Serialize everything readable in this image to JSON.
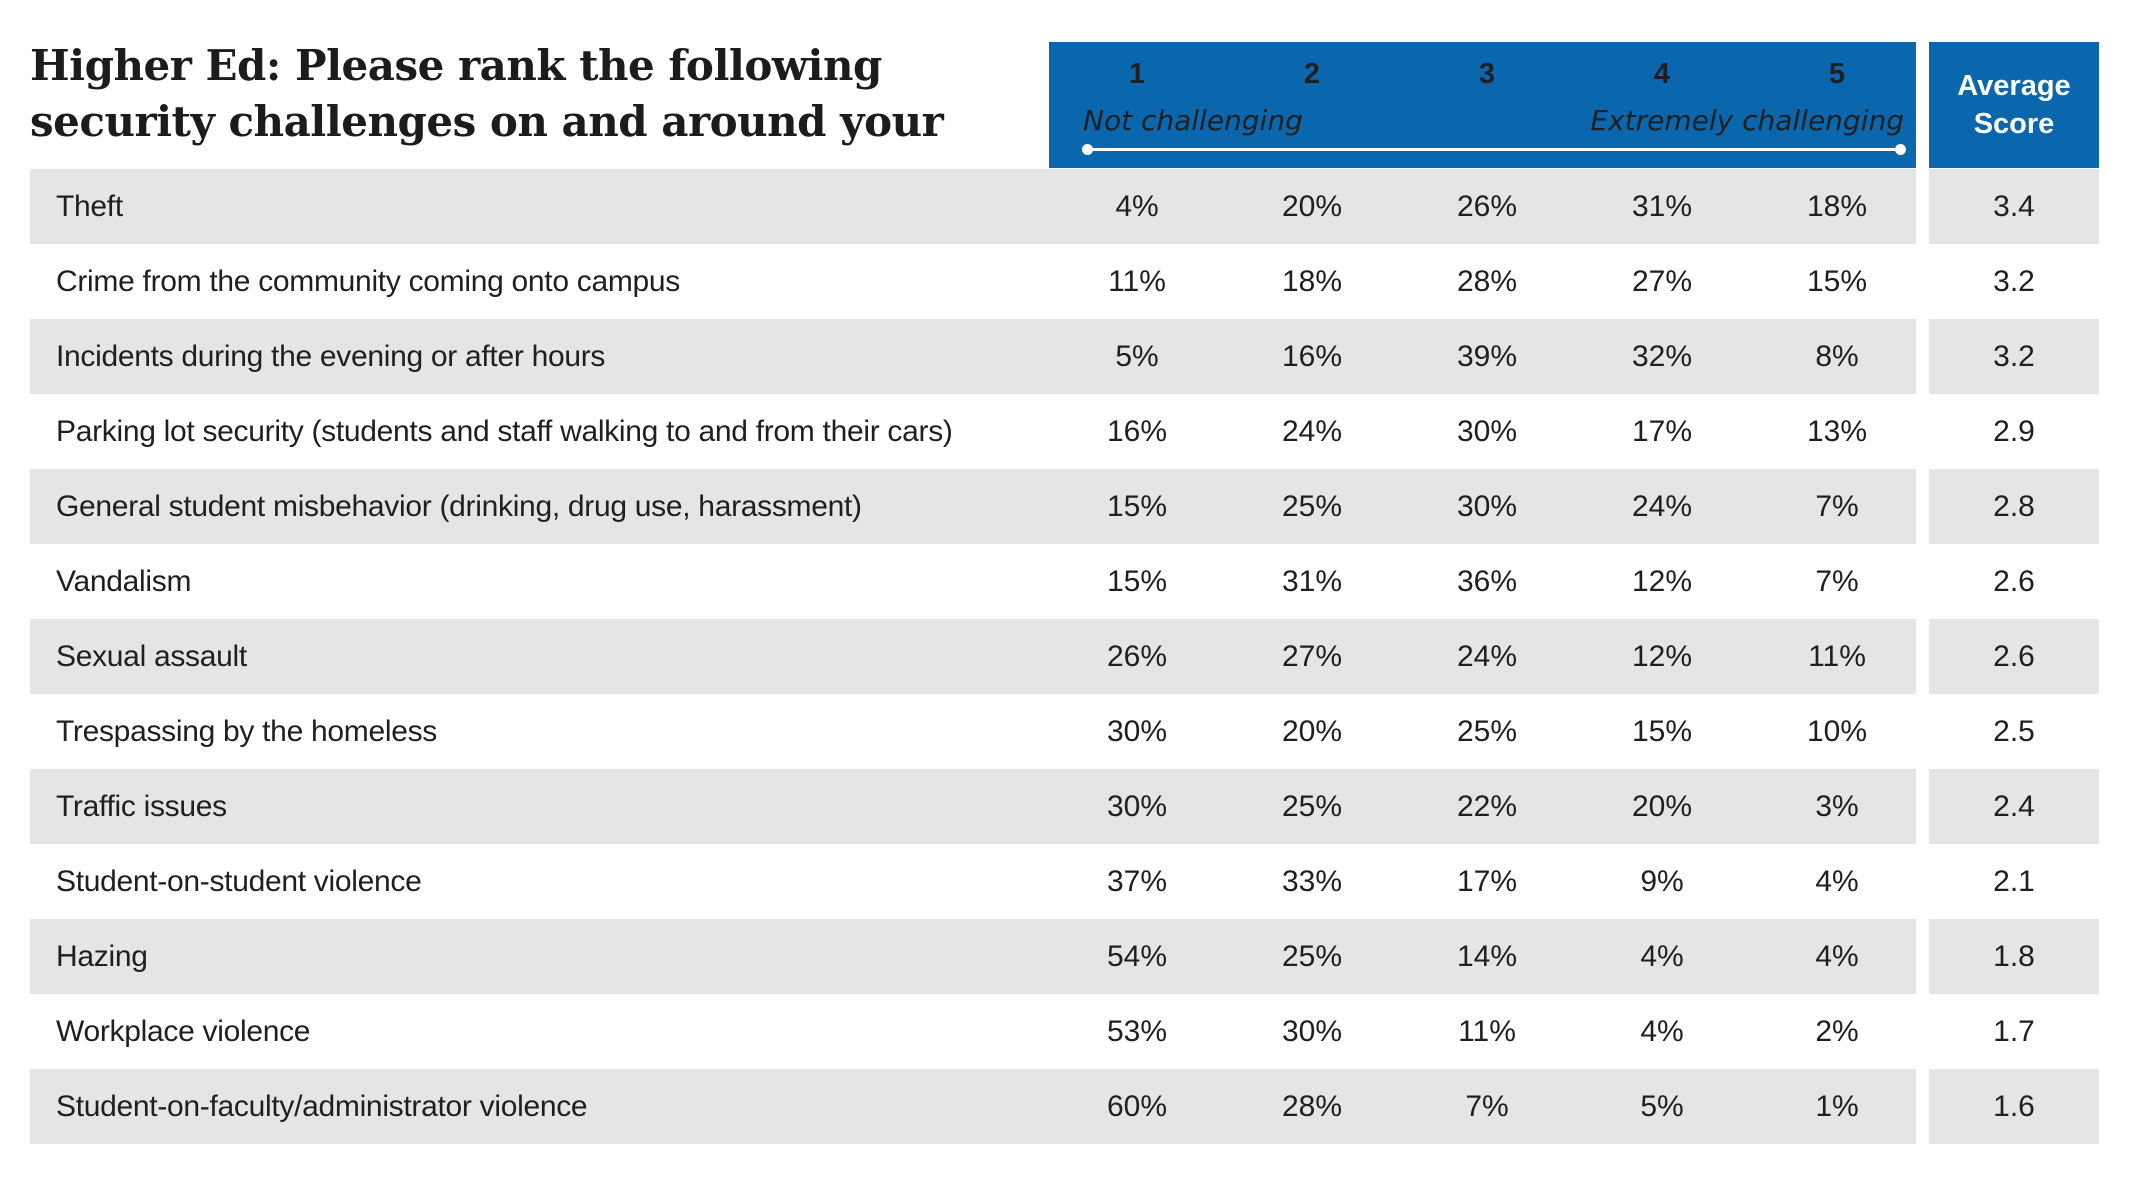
{
  "chart_data": {
    "type": "table",
    "title": "Higher Ed: Please rank the following security challenges on and around your campus.",
    "scale": {
      "columns": [
        "1",
        "2",
        "3",
        "4",
        "5"
      ],
      "low_label": "Not challenging",
      "high_label": "Extremely challenging"
    },
    "average_header": "Average Score",
    "rows": [
      {
        "label": "Theft",
        "values": [
          "4%",
          "20%",
          "26%",
          "31%",
          "18%"
        ],
        "average": "3.4"
      },
      {
        "label": "Crime from the community coming onto campus",
        "values": [
          "11%",
          "18%",
          "28%",
          "27%",
          "15%"
        ],
        "average": "3.2"
      },
      {
        "label": "Incidents during the evening or after hours",
        "values": [
          "5%",
          "16%",
          "39%",
          "32%",
          "8%"
        ],
        "average": "3.2"
      },
      {
        "label": "Parking lot security (students and staff walking to and from their cars)",
        "values": [
          "16%",
          "24%",
          "30%",
          "17%",
          "13%"
        ],
        "average": "2.9"
      },
      {
        "label": "General student misbehavior (drinking, drug use, harassment)",
        "values": [
          "15%",
          "25%",
          "30%",
          "24%",
          "7%"
        ],
        "average": "2.8"
      },
      {
        "label": "Vandalism",
        "values": [
          "15%",
          "31%",
          "36%",
          "12%",
          "7%"
        ],
        "average": "2.6"
      },
      {
        "label": "Sexual assault",
        "values": [
          "26%",
          "27%",
          "24%",
          "12%",
          "11%"
        ],
        "average": "2.6"
      },
      {
        "label": "Trespassing by the homeless",
        "values": [
          "30%",
          "20%",
          "25%",
          "15%",
          "10%"
        ],
        "average": "2.5"
      },
      {
        "label": "Traffic issues",
        "values": [
          "30%",
          "25%",
          "22%",
          "20%",
          "3%"
        ],
        "average": "2.4"
      },
      {
        "label": "Student-on-student violence",
        "values": [
          "37%",
          "33%",
          "17%",
          "9%",
          "4%"
        ],
        "average": "2.1"
      },
      {
        "label": "Hazing",
        "values": [
          "54%",
          "25%",
          "14%",
          "4%",
          "4%"
        ],
        "average": "1.8"
      },
      {
        "label": "Workplace violence",
        "values": [
          "53%",
          "30%",
          "11%",
          "4%",
          "2%"
        ],
        "average": "1.7"
      },
      {
        "label": "Student-on-faculty/administrator violence",
        "values": [
          "60%",
          "28%",
          "7%",
          "5%",
          "1%"
        ],
        "average": "1.6"
      }
    ]
  },
  "colors": {
    "header_bg": "#0a66ad",
    "row_shade": "#e4e5e7"
  }
}
